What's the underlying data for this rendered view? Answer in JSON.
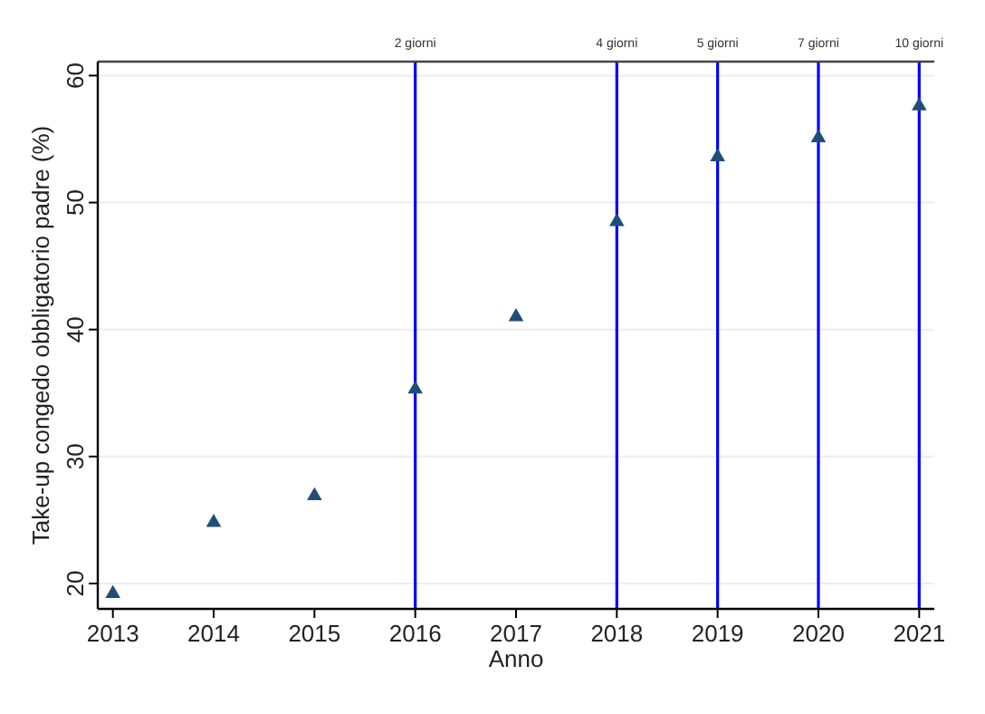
{
  "chart_data": {
    "type": "scatter",
    "xlabel": "Anno",
    "ylabel": "Take-up congedo obbligatorio padre (%)",
    "x": [
      2013,
      2014,
      2015,
      2016,
      2017,
      2018,
      2019,
      2020,
      2021
    ],
    "series": [
      {
        "color": "#1f4e79",
        "values": [
          19.2,
          24.8,
          26.9,
          35.3,
          41.0,
          48.5,
          53.6,
          55.1,
          57.6
        ]
      }
    ],
    "xlim": [
      2012.85,
      2021.15
    ],
    "xticks": [
      2013,
      2014,
      2015,
      2016,
      2017,
      2018,
      2019,
      2020,
      2021
    ],
    "ylim": [
      18,
      61.1
    ],
    "yticks": [
      20,
      30,
      40,
      50,
      60
    ],
    "grid": "y",
    "marker": "triangle",
    "ref_lines": [
      {
        "axis": "x",
        "value": 2016,
        "label": "2 giorni",
        "color": "#0000ff"
      },
      {
        "axis": "x",
        "value": 2018,
        "label": "4 giorni",
        "color": "#0000ff"
      },
      {
        "axis": "x",
        "value": 2019,
        "label": "5 giorni",
        "color": "#0000ff"
      },
      {
        "axis": "x",
        "value": 2020,
        "label": "7 giorni",
        "color": "#0000ff"
      },
      {
        "axis": "x",
        "value": 2021,
        "label": "10 giorni",
        "color": "#0000ff"
      }
    ]
  }
}
